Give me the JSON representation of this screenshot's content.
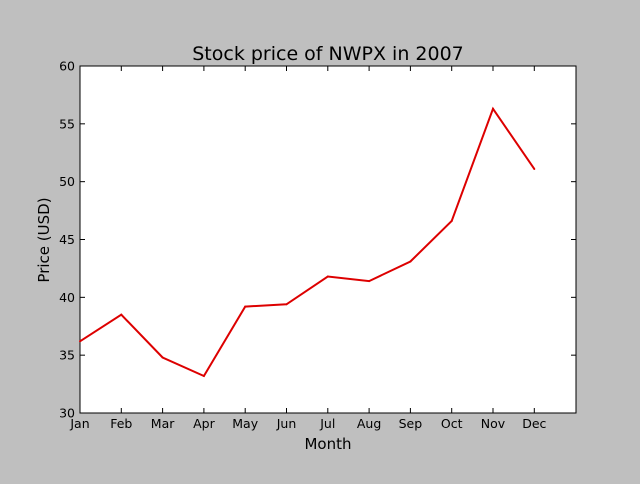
{
  "chart_data": {
    "type": "line",
    "title": "Stock price of NWPX in 2007",
    "xlabel": "Month",
    "ylabel": "Price (USD)",
    "categories": [
      "Jan",
      "Feb",
      "Mar",
      "Apr",
      "May",
      "Jun",
      "Jul",
      "Aug",
      "Sep",
      "Oct",
      "Nov",
      "Dec"
    ],
    "series": [
      {
        "values": [
          36.2,
          38.5,
          34.8,
          33.2,
          39.2,
          39.4,
          41.8,
          41.4,
          43.1,
          46.6,
          56.3,
          51.1
        ],
        "color": "#dd0000"
      }
    ],
    "ylim": [
      30,
      60
    ],
    "yticks": [
      30,
      35,
      40,
      45,
      50,
      55,
      60
    ],
    "grid": false,
    "legend": "none",
    "plot_background": "#ffffff",
    "figure_background": "#bfbfbf"
  }
}
